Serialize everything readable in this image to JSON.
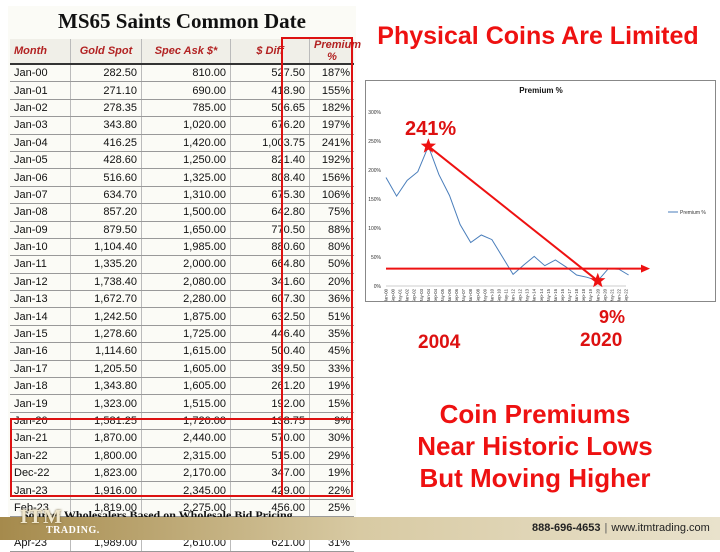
{
  "table": {
    "title": "MS65 Saints Common Date",
    "headers": [
      "Month",
      "Gold Spot",
      "Spec Ask $*",
      "$ Diff",
      "Premium %"
    ],
    "rows": [
      [
        "Jan-00",
        "282.50",
        "810.00",
        "527.50",
        "187%"
      ],
      [
        "Jan-01",
        "271.10",
        "690.00",
        "418.90",
        "155%"
      ],
      [
        "Jan-02",
        "278.35",
        "785.00",
        "506.65",
        "182%"
      ],
      [
        "Jan-03",
        "343.80",
        "1,020.00",
        "676.20",
        "197%"
      ],
      [
        "Jan-04",
        "416.25",
        "1,420.00",
        "1,003.75",
        "241%"
      ],
      [
        "Jan-05",
        "428.60",
        "1,250.00",
        "821.40",
        "192%"
      ],
      [
        "Jan-06",
        "516.60",
        "1,325.00",
        "808.40",
        "156%"
      ],
      [
        "Jan-07",
        "634.70",
        "1,310.00",
        "675.30",
        "106%"
      ],
      [
        "Jan-08",
        "857.20",
        "1,500.00",
        "642.80",
        "75%"
      ],
      [
        "Jan-09",
        "879.50",
        "1,650.00",
        "770.50",
        "88%"
      ],
      [
        "Jan-10",
        "1,104.40",
        "1,985.00",
        "880.60",
        "80%"
      ],
      [
        "Jan-11",
        "1,335.20",
        "2,000.00",
        "664.80",
        "50%"
      ],
      [
        "Jan-12",
        "1,738.40",
        "2,080.00",
        "341.60",
        "20%"
      ],
      [
        "Jan-13",
        "1,672.70",
        "2,280.00",
        "607.30",
        "36%"
      ],
      [
        "Jan-14",
        "1,242.50",
        "1,875.00",
        "632.50",
        "51%"
      ],
      [
        "Jan-15",
        "1,278.60",
        "1,725.00",
        "446.40",
        "35%"
      ],
      [
        "Jan-16",
        "1,114.60",
        "1,615.00",
        "500.40",
        "45%"
      ],
      [
        "Jan-17",
        "1,205.50",
        "1,605.00",
        "399.50",
        "33%"
      ],
      [
        "Jan-18",
        "1,343.80",
        "1,605.00",
        "261.20",
        "19%"
      ],
      [
        "Jan-19",
        "1,323.00",
        "1,515.00",
        "192.00",
        "15%"
      ],
      [
        "Jan-20",
        "1,581.25",
        "1,720.00",
        "138.75",
        "9%"
      ],
      [
        "Jan-21",
        "1,870.00",
        "2,440.00",
        "570.00",
        "30%"
      ],
      [
        "Jan-22",
        "1,800.00",
        "2,315.00",
        "515.00",
        "29%"
      ],
      [
        "Dec-22",
        "1,823.00",
        "2,170.00",
        "347.00",
        "19%"
      ],
      [
        "Jan-23",
        "1,916.00",
        "2,345.00",
        "429.00",
        "22%"
      ],
      [
        "Feb-23",
        "1,819.00",
        "2,275.00",
        "456.00",
        "25%"
      ],
      [
        "Mar-23",
        "1,984.00",
        "2,625.00",
        "641.00",
        "32%"
      ],
      [
        "Apr-23",
        "1,989.00",
        "2,610.00",
        "621.00",
        "31%"
      ]
    ],
    "source_note": "Source: Wholesalers Based on Wholesale Bid Pricing"
  },
  "headline": "Physical Coins Are Limited",
  "annotations": {
    "peak_value": "241%",
    "low_value": "9%",
    "peak_year": "2004",
    "low_year": "2020"
  },
  "message": [
    "Coin Premiums",
    "Near Historic Lows",
    "But Moving Higher"
  ],
  "footer": {
    "logo_main": "ITM",
    "logo_sub": "TRADING.",
    "phone": "888-696-4653",
    "website": "www.itmtrading.com"
  },
  "colors": {
    "accent_red": "#ee1111",
    "line_blue": "#4a7ebb"
  },
  "chart_data": {
    "type": "line",
    "title": "Premium %",
    "legend": [
      "Premium %"
    ],
    "legend_position": "right",
    "x": [
      "Jan-00",
      "Sep-00",
      "May-01",
      "Jan-02",
      "Sep-02",
      "May-03",
      "Jan-04",
      "Sep-04",
      "May-05",
      "Jan-06",
      "Sep-06",
      "May-07",
      "Jan-08",
      "Sep-08",
      "May-09",
      "Jan-10",
      "Sep-10",
      "May-11",
      "Jan-12",
      "Sep-12",
      "May-13",
      "Jan-14",
      "Sep-14",
      "May-15",
      "Jan-16",
      "Sep-16",
      "May-17",
      "Jan-18",
      "Sep-18",
      "May-19",
      "Jan-20",
      "Sep-20",
      "May-21",
      "Jan-22",
      "Sep-22"
    ],
    "series": [
      {
        "name": "Premium %",
        "x": [
          "Jan-00",
          "Jan-01",
          "Jan-02",
          "Jan-03",
          "Jan-04",
          "Jan-05",
          "Jan-06",
          "Jan-07",
          "Jan-08",
          "Jan-09",
          "Jan-10",
          "Jan-11",
          "Jan-12",
          "Jan-13",
          "Jan-14",
          "Jan-15",
          "Jan-16",
          "Jan-17",
          "Jan-18",
          "Jan-19",
          "Jan-20",
          "Jan-21",
          "Jan-22",
          "Dec-22"
        ],
        "values": [
          187,
          155,
          182,
          197,
          241,
          192,
          156,
          106,
          75,
          88,
          80,
          50,
          20,
          36,
          51,
          35,
          45,
          33,
          19,
          15,
          9,
          30,
          29,
          19
        ]
      }
    ],
    "y_ticks": [
      "0%",
      "50%",
      "100%",
      "150%",
      "200%",
      "250%",
      "300%"
    ],
    "ylim": [
      0,
      300
    ],
    "grid": false,
    "overlay": {
      "trend_line_from": {
        "x": "Jan-04",
        "y": 241
      },
      "trend_line_to": {
        "x": "Jan-20",
        "y": 9
      },
      "horizontal_reference_y": 30
    }
  }
}
